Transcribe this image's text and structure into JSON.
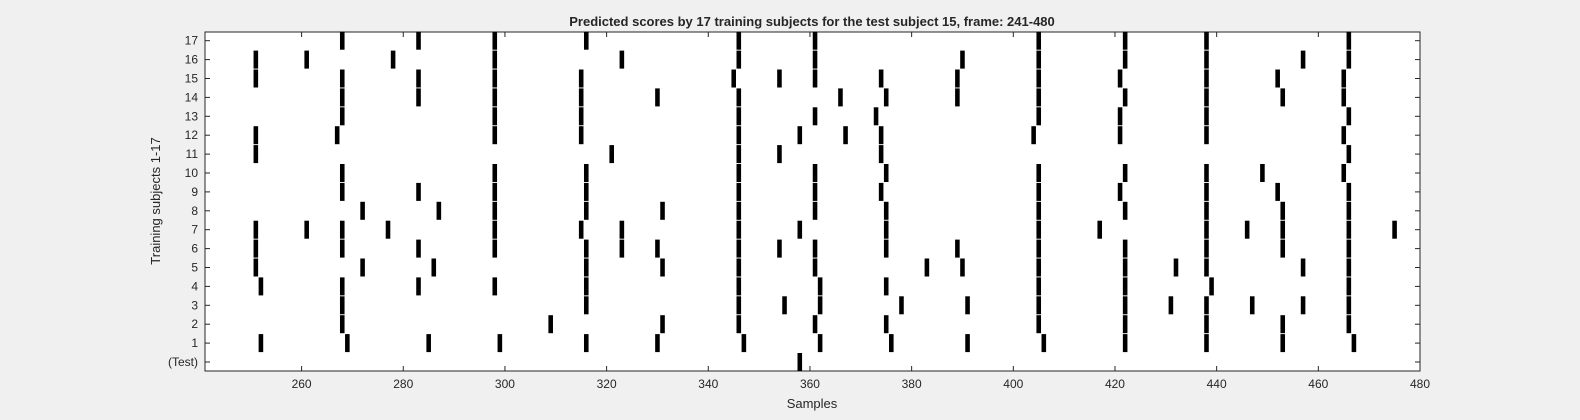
{
  "chart_data": {
    "type": "scatter",
    "title": "Predicted scores by 17 training subjects for the test subject 15, frame: 241-480",
    "xlabel": "Samples",
    "ylabel": "Training subjects 1-17",
    "xlim": [
      241,
      480
    ],
    "x_ticks": [
      260,
      280,
      300,
      320,
      340,
      360,
      380,
      400,
      420,
      440,
      460,
      480
    ],
    "y_ticks": [
      {
        "value": 0,
        "label": "(Test)"
      },
      {
        "value": 1,
        "label": "1"
      },
      {
        "value": 2,
        "label": "2"
      },
      {
        "value": 3,
        "label": "3"
      },
      {
        "value": 4,
        "label": "4"
      },
      {
        "value": 5,
        "label": "5"
      },
      {
        "value": 6,
        "label": "6"
      },
      {
        "value": 7,
        "label": "7"
      },
      {
        "value": 8,
        "label": "8"
      },
      {
        "value": 9,
        "label": "9"
      },
      {
        "value": 10,
        "label": "10"
      },
      {
        "value": 11,
        "label": "11"
      },
      {
        "value": 12,
        "label": "12"
      },
      {
        "value": 13,
        "label": "13"
      },
      {
        "value": 14,
        "label": "14"
      },
      {
        "value": 15,
        "label": "15"
      },
      {
        "value": 16,
        "label": "16"
      },
      {
        "value": 17,
        "label": "17"
      }
    ],
    "grid": false,
    "marker_color": "#000000",
    "rows": [
      {
        "row": 0,
        "x": [
          358
        ]
      },
      {
        "row": 1,
        "x": [
          252,
          269,
          285,
          299,
          316,
          330,
          347,
          362,
          376,
          391,
          406,
          422,
          438,
          453,
          467
        ]
      },
      {
        "row": 2,
        "x": [
          268,
          309,
          331,
          346,
          361,
          375,
          405,
          422,
          438,
          453,
          466
        ]
      },
      {
        "row": 3,
        "x": [
          268,
          316,
          346,
          355,
          362,
          378,
          391,
          405,
          422,
          431,
          438,
          447,
          457,
          466
        ]
      },
      {
        "row": 4,
        "x": [
          252,
          268,
          283,
          298,
          316,
          346,
          362,
          375,
          405,
          422,
          439,
          466
        ]
      },
      {
        "row": 5,
        "x": [
          251,
          272,
          286,
          316,
          331,
          346,
          361,
          383,
          390,
          405,
          422,
          432,
          438,
          457,
          466
        ]
      },
      {
        "row": 6,
        "x": [
          251,
          268,
          283,
          298,
          316,
          323,
          330,
          346,
          354,
          361,
          375,
          389,
          405,
          422,
          438,
          453,
          466
        ]
      },
      {
        "row": 7,
        "x": [
          251,
          261,
          268,
          277,
          298,
          315,
          323,
          346,
          358,
          375,
          405,
          417,
          438,
          446,
          453,
          466,
          475
        ]
      },
      {
        "row": 8,
        "x": [
          272,
          287,
          298,
          316,
          331,
          346,
          361,
          375,
          405,
          422,
          438,
          453,
          466
        ]
      },
      {
        "row": 9,
        "x": [
          268,
          283,
          298,
          316,
          346,
          361,
          374,
          405,
          421,
          438,
          452,
          466
        ]
      },
      {
        "row": 10,
        "x": [
          268,
          298,
          316,
          346,
          361,
          375,
          405,
          422,
          438,
          449,
          465
        ]
      },
      {
        "row": 11,
        "x": [
          251,
          321,
          346,
          354,
          374,
          466
        ]
      },
      {
        "row": 12,
        "x": [
          251,
          267,
          298,
          315,
          346,
          358,
          367,
          374,
          404,
          421,
          438,
          465
        ]
      },
      {
        "row": 13,
        "x": [
          268,
          298,
          315,
          346,
          361,
          373,
          405,
          421,
          438,
          466
        ]
      },
      {
        "row": 14,
        "x": [
          268,
          283,
          298,
          315,
          330,
          346,
          366,
          375,
          389,
          405,
          422,
          438,
          453,
          465
        ]
      },
      {
        "row": 15,
        "x": [
          251,
          268,
          283,
          298,
          315,
          345,
          354,
          361,
          374,
          389,
          405,
          421,
          438,
          452,
          465
        ]
      },
      {
        "row": 16,
        "x": [
          251,
          261,
          278,
          298,
          323,
          346,
          361,
          390,
          405,
          422,
          438,
          457,
          466
        ]
      },
      {
        "row": 17,
        "x": [
          268,
          283,
          298,
          316,
          346,
          361,
          405,
          422,
          438,
          466
        ]
      }
    ]
  }
}
